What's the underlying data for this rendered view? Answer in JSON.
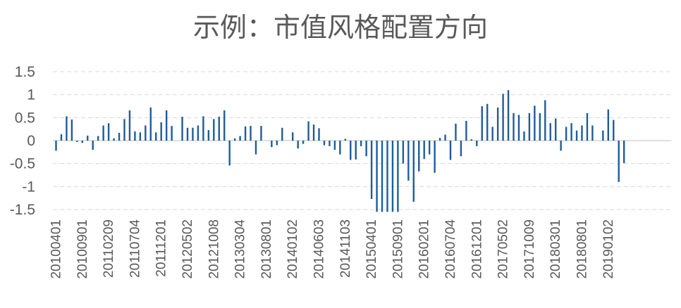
{
  "chart_data": {
    "type": "bar",
    "title": "示例：市值风格配置方向",
    "xlabel": "",
    "ylabel": "",
    "ylim": [
      -1.5,
      1.5
    ],
    "yticks": [
      "1.5",
      "1",
      "0.5",
      "0",
      "-0.5",
      "-1",
      "-1.5"
    ],
    "ytick_values": [
      1.5,
      1,
      0.5,
      0,
      -0.5,
      -1,
      -1.5
    ],
    "grid": true,
    "legend": "none",
    "color": "#1f5c99",
    "start_month": "201004",
    "xtick_labels": [
      "20100401",
      "20100901",
      "20110209",
      "20110704",
      "20111201",
      "20120502",
      "20121008",
      "20130304",
      "20130801",
      "20140102",
      "20140603",
      "20141103",
      "20150401",
      "20150901",
      "20160201",
      "20160704",
      "20161201",
      "20170502",
      "20171009",
      "20180301",
      "20180801",
      "20190102"
    ],
    "values": [
      -0.22,
      0.14,
      0.53,
      0.46,
      -0.03,
      -0.05,
      0.11,
      -0.2,
      0.1,
      0.33,
      0.38,
      0.05,
      0.17,
      0.47,
      0.66,
      0.2,
      0.18,
      0.33,
      0.72,
      0.18,
      0.4,
      0.66,
      0.32,
      0.0,
      0.52,
      0.28,
      0.28,
      0.33,
      0.53,
      0.23,
      0.47,
      0.52,
      0.66,
      -0.54,
      0.05,
      0.1,
      0.31,
      0.32,
      -0.3,
      0.32,
      0.0,
      -0.14,
      -0.1,
      0.28,
      0.0,
      0.18,
      -0.17,
      -0.07,
      0.42,
      0.35,
      0.27,
      -0.1,
      -0.12,
      -0.2,
      -0.3,
      0.04,
      -0.42,
      -0.41,
      -0.12,
      -0.34,
      -1.27,
      -1.55,
      -1.55,
      -1.55,
      -1.55,
      -1.55,
      -0.5,
      -0.87,
      -1.33,
      -0.67,
      -0.4,
      -0.3,
      -0.7,
      0.06,
      0.13,
      -0.42,
      0.37,
      -0.34,
      0.43,
      0.03,
      -0.12,
      0.75,
      0.8,
      0.3,
      0.72,
      1.02,
      1.1,
      0.6,
      0.56,
      0.2,
      0.6,
      0.76,
      0.6,
      0.88,
      0.38,
      0.48,
      -0.22,
      0.3,
      0.38,
      0.22,
      0.33,
      0.6,
      0.33,
      0.0,
      0.22,
      0.68,
      0.45,
      -0.9,
      -0.49
    ]
  }
}
